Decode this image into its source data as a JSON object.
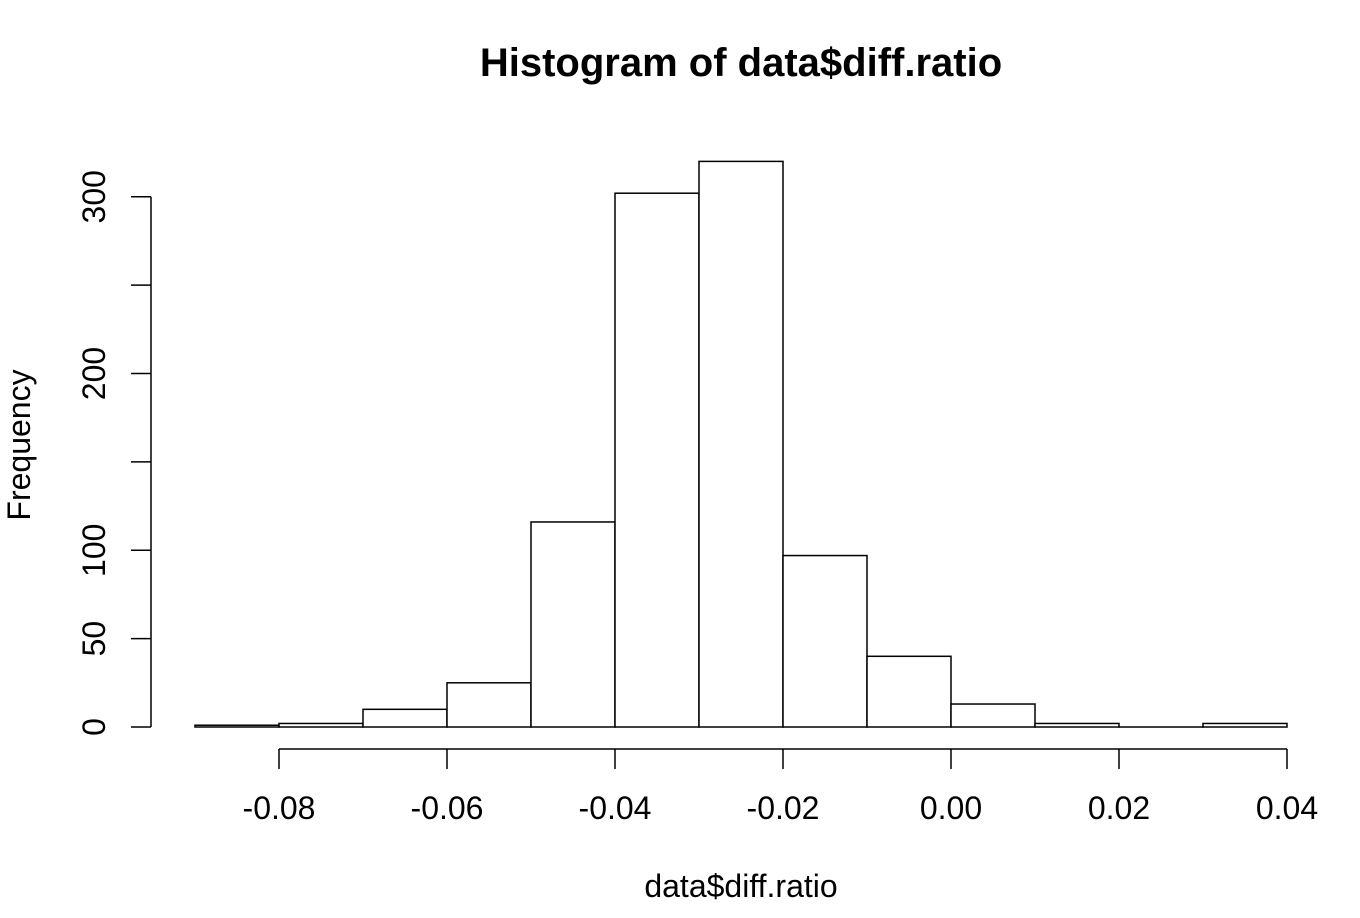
{
  "chart_data": {
    "type": "bar",
    "title": "Histogram of data$diff.ratio",
    "xlabel": "data$diff.ratio",
    "ylabel": "Frequency",
    "bins": [
      {
        "start": -0.09,
        "end": -0.08,
        "count": 1
      },
      {
        "start": -0.08,
        "end": -0.07,
        "count": 2
      },
      {
        "start": -0.07,
        "end": -0.06,
        "count": 10
      },
      {
        "start": -0.06,
        "end": -0.05,
        "count": 25
      },
      {
        "start": -0.05,
        "end": -0.04,
        "count": 116
      },
      {
        "start": -0.04,
        "end": -0.03,
        "count": 302
      },
      {
        "start": -0.03,
        "end": -0.02,
        "count": 320
      },
      {
        "start": -0.02,
        "end": -0.01,
        "count": 97
      },
      {
        "start": -0.01,
        "end": 0.0,
        "count": 40
      },
      {
        "start": 0.0,
        "end": 0.01,
        "count": 13
      },
      {
        "start": 0.01,
        "end": 0.02,
        "count": 2
      },
      {
        "start": 0.02,
        "end": 0.03,
        "count": 0
      },
      {
        "start": 0.03,
        "end": 0.04,
        "count": 2
      }
    ],
    "xlim": [
      -0.09,
      0.04
    ],
    "ylim": [
      0,
      320
    ],
    "x_ticks": [
      -0.08,
      -0.06,
      -0.04,
      -0.02,
      0.0,
      0.02,
      0.04
    ],
    "x_tick_labels": [
      "-0.08",
      "-0.06",
      "-0.04",
      "-0.02",
      "0.00",
      "0.02",
      "0.04"
    ],
    "y_ticks": [
      0,
      50,
      100,
      150,
      200,
      250,
      300
    ],
    "y_tick_labels": [
      "0",
      "50",
      "100",
      "",
      "200",
      "",
      "300"
    ],
    "grid": false,
    "legend": "none"
  }
}
